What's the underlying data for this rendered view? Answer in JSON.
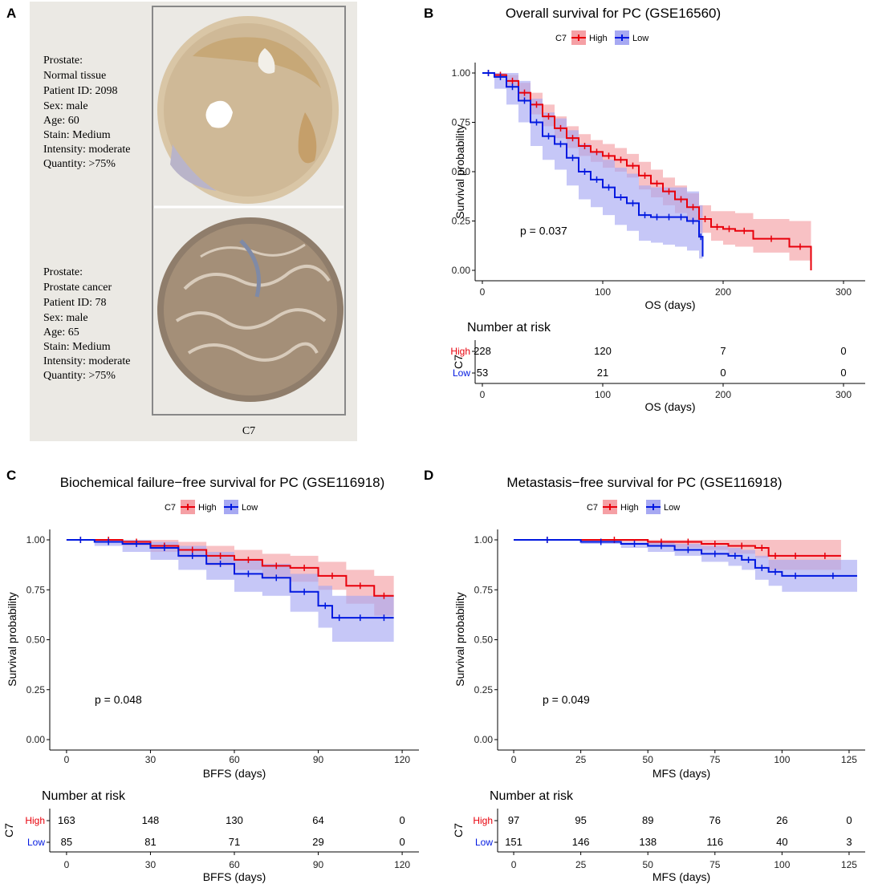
{
  "colors": {
    "high": "#e8000b",
    "low": "#0018e0",
    "high_fill": "#f5a0a5",
    "low_fill": "#a7a9f2",
    "panel_bg": "#ebe9e4",
    "frame": "#888888"
  },
  "panel_a": {
    "label": "A",
    "footer": "C7",
    "normal": {
      "lines": [
        "Prostate:",
        "Normal tissue",
        "Patient ID: 2098",
        "Sex: male",
        "Age: 60",
        "Stain: Medium",
        "Intensity: moderate",
        "Quantity: >75%"
      ]
    },
    "cancer": {
      "lines": [
        "Prostate:",
        "Prostate cancer",
        "Patient ID: 78",
        "Sex: male",
        "Age: 65",
        "Stain: Medium",
        "Intensity: moderate",
        "Quantity: >75%"
      ]
    }
  },
  "chart_data": [
    {
      "panel": "B",
      "type": "line",
      "title": "Overall survival for PC (GSE16560)",
      "legend_title": "C7",
      "legend_position": "top",
      "xlabel": "OS (days)",
      "ylabel": "Survival probability",
      "xlim": [
        0,
        300
      ],
      "xticks": [
        0,
        100,
        200,
        300
      ],
      "ylim": [
        0,
        1
      ],
      "yticks": [
        "0.00",
        "0.25",
        "0.50",
        "0.75",
        "1.00"
      ],
      "pvalue": "p = 0.037",
      "series": [
        {
          "name": "High",
          "x": [
            0,
            10,
            20,
            30,
            40,
            50,
            60,
            70,
            80,
            90,
            100,
            110,
            120,
            130,
            140,
            150,
            160,
            170,
            180,
            190,
            200,
            210,
            225,
            255,
            273
          ],
          "y": [
            1.0,
            0.99,
            0.96,
            0.9,
            0.84,
            0.78,
            0.72,
            0.67,
            0.63,
            0.6,
            0.58,
            0.56,
            0.53,
            0.48,
            0.44,
            0.4,
            0.36,
            0.32,
            0.26,
            0.22,
            0.21,
            0.2,
            0.16,
            0.12,
            0.0
          ],
          "upper": [
            1.0,
            1.0,
            0.99,
            0.95,
            0.9,
            0.84,
            0.78,
            0.73,
            0.69,
            0.66,
            0.64,
            0.62,
            0.59,
            0.55,
            0.51,
            0.47,
            0.43,
            0.39,
            0.33,
            0.3,
            0.3,
            0.29,
            0.26,
            0.25,
            0.25
          ],
          "lower": [
            1.0,
            0.98,
            0.93,
            0.86,
            0.79,
            0.73,
            0.67,
            0.62,
            0.58,
            0.55,
            0.52,
            0.5,
            0.47,
            0.41,
            0.37,
            0.33,
            0.29,
            0.25,
            0.19,
            0.15,
            0.13,
            0.12,
            0.09,
            0.05,
            0.0
          ]
        },
        {
          "name": "Low",
          "x": [
            0,
            10,
            20,
            30,
            40,
            50,
            60,
            70,
            80,
            90,
            100,
            110,
            120,
            130,
            140,
            150,
            160,
            170,
            180,
            183
          ],
          "y": [
            1.0,
            0.98,
            0.93,
            0.86,
            0.75,
            0.68,
            0.64,
            0.57,
            0.5,
            0.46,
            0.42,
            0.37,
            0.34,
            0.28,
            0.27,
            0.27,
            0.27,
            0.25,
            0.17,
            0.07
          ],
          "upper": [
            1.0,
            1.0,
            1.0,
            0.96,
            0.87,
            0.8,
            0.77,
            0.71,
            0.64,
            0.6,
            0.56,
            0.52,
            0.49,
            0.43,
            0.42,
            0.42,
            0.42,
            0.4,
            0.33,
            0.3
          ],
          "lower": [
            1.0,
            0.92,
            0.84,
            0.75,
            0.63,
            0.56,
            0.51,
            0.43,
            0.36,
            0.32,
            0.28,
            0.23,
            0.2,
            0.15,
            0.14,
            0.13,
            0.12,
            0.1,
            0.06,
            0.0
          ]
        }
      ],
      "risk_table": {
        "title": "Number at risk",
        "strata": "C7",
        "xlabel": "OS (days)",
        "times": [
          0,
          100,
          200,
          300
        ],
        "rows": [
          {
            "name": "High",
            "counts": [
              228,
              120,
              7,
              0
            ]
          },
          {
            "name": "Low",
            "counts": [
              53,
              21,
              0,
              0
            ]
          }
        ]
      }
    },
    {
      "panel": "C",
      "type": "line",
      "title": "Biochemical failure−free survival for PC (GSE116918)",
      "legend_title": "C7",
      "legend_position": "top",
      "xlabel": "BFFS (days)",
      "ylabel": "Survival probability",
      "xlim": [
        0,
        120
      ],
      "xticks": [
        0,
        30,
        60,
        90,
        120
      ],
      "ylim": [
        0,
        1
      ],
      "yticks": [
        "0.00",
        "0.25",
        "0.50",
        "0.75",
        "1.00"
      ],
      "pvalue": "p = 0.048",
      "series": [
        {
          "name": "High",
          "x": [
            0,
            10,
            20,
            30,
            40,
            50,
            60,
            70,
            80,
            90,
            100,
            110,
            117
          ],
          "y": [
            1.0,
            1.0,
            0.99,
            0.97,
            0.95,
            0.92,
            0.9,
            0.87,
            0.86,
            0.82,
            0.77,
            0.72,
            0.72
          ],
          "upper": [
            1.0,
            1.0,
            1.0,
            1.0,
            0.99,
            0.97,
            0.95,
            0.93,
            0.92,
            0.89,
            0.85,
            0.82,
            0.82
          ],
          "lower": [
            1.0,
            0.99,
            0.97,
            0.94,
            0.91,
            0.87,
            0.85,
            0.81,
            0.79,
            0.75,
            0.68,
            0.62,
            0.62
          ]
        },
        {
          "name": "Low",
          "x": [
            0,
            10,
            20,
            30,
            40,
            50,
            60,
            70,
            80,
            90,
            95,
            100,
            110,
            117
          ],
          "y": [
            1.0,
            0.99,
            0.98,
            0.96,
            0.92,
            0.88,
            0.83,
            0.81,
            0.74,
            0.67,
            0.61,
            0.61,
            0.61,
            0.61
          ],
          "upper": [
            1.0,
            1.0,
            1.0,
            0.99,
            0.97,
            0.94,
            0.9,
            0.88,
            0.83,
            0.77,
            0.72,
            0.72,
            0.72,
            0.72
          ],
          "lower": [
            1.0,
            0.97,
            0.94,
            0.9,
            0.85,
            0.8,
            0.74,
            0.72,
            0.64,
            0.56,
            0.49,
            0.49,
            0.49,
            0.49
          ]
        }
      ],
      "risk_table": {
        "title": "Number at risk",
        "strata": "C7",
        "xlabel": "BFFS (days)",
        "times": [
          0,
          30,
          60,
          90,
          120
        ],
        "rows": [
          {
            "name": "High",
            "counts": [
              163,
              148,
              130,
              64,
              0
            ]
          },
          {
            "name": "Low",
            "counts": [
              85,
              81,
              71,
              29,
              0
            ]
          }
        ]
      }
    },
    {
      "panel": "D",
      "type": "line",
      "title": "Metastasis−free survival for PC (GSE116918)",
      "legend_title": "C7",
      "legend_position": "top",
      "xlabel": "MFS (days)",
      "ylabel": "Survival probability",
      "xlim": [
        0,
        125
      ],
      "xticks": [
        0,
        25,
        50,
        75,
        100,
        125
      ],
      "ylim": [
        0,
        1
      ],
      "yticks": [
        "0.00",
        "0.25",
        "0.50",
        "0.75",
        "1.00"
      ],
      "pvalue": "p = 0.049",
      "series": [
        {
          "name": "High",
          "x": [
            0,
            25,
            50,
            60,
            70,
            80,
            90,
            95,
            100,
            110,
            122
          ],
          "y": [
            1.0,
            1.0,
            0.99,
            0.99,
            0.98,
            0.97,
            0.96,
            0.92,
            0.92,
            0.92,
            0.92
          ],
          "upper": [
            1.0,
            1.0,
            1.0,
            1.0,
            1.0,
            1.0,
            1.0,
            1.0,
            1.0,
            1.0,
            1.0
          ],
          "lower": [
            1.0,
            0.99,
            0.97,
            0.96,
            0.95,
            0.93,
            0.91,
            0.85,
            0.85,
            0.85,
            0.85
          ]
        },
        {
          "name": "Low",
          "x": [
            0,
            25,
            40,
            50,
            60,
            70,
            80,
            85,
            90,
            95,
            100,
            110,
            128
          ],
          "y": [
            1.0,
            0.99,
            0.98,
            0.97,
            0.95,
            0.93,
            0.92,
            0.9,
            0.86,
            0.84,
            0.82,
            0.82,
            0.82
          ],
          "upper": [
            1.0,
            1.0,
            0.99,
            0.99,
            0.98,
            0.97,
            0.96,
            0.95,
            0.92,
            0.9,
            0.9,
            0.9,
            0.9
          ],
          "lower": [
            1.0,
            0.98,
            0.96,
            0.94,
            0.92,
            0.89,
            0.87,
            0.85,
            0.8,
            0.77,
            0.74,
            0.74,
            0.74
          ]
        }
      ],
      "risk_table": {
        "title": "Number at risk",
        "strata": "C7",
        "xlabel": "MFS (days)",
        "times": [
          0,
          25,
          50,
          75,
          100,
          125
        ],
        "rows": [
          {
            "name": "High",
            "counts": [
              97,
              95,
              89,
              76,
              26,
              0
            ]
          },
          {
            "name": "Low",
            "counts": [
              151,
              146,
              138,
              116,
              40,
              3
            ]
          }
        ]
      }
    }
  ]
}
